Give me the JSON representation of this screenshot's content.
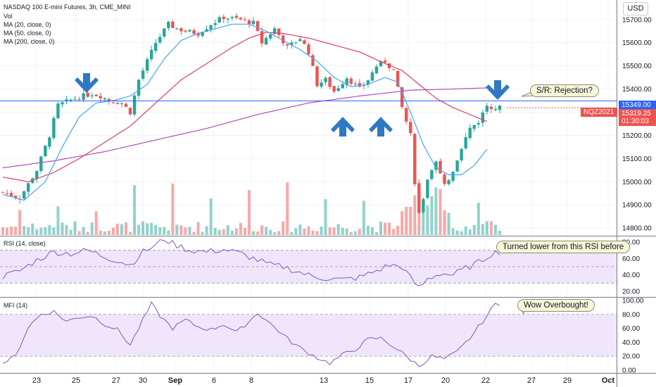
{
  "legend": {
    "title": "NASDAQ 100 E-mini Futures, 3h, CME_MINI",
    "vol": "Vol",
    "ma20": "MA (20, close, 0)",
    "ma50": "MA (50, close, 0)",
    "ma200": "MA (200, close, 0)"
  },
  "currency": "USD",
  "price_tags": {
    "level": "15349.00",
    "symbol": "NQZ2021",
    "last": "15319.25",
    "countdown": "01:30:03"
  },
  "callouts": {
    "sr": "S/R: Rejection?",
    "rsi": "Turned lower from this RSI before",
    "mfi": "Wow Overbought!"
  },
  "rsi_label": "RSI (14, close)",
  "mfi_label": "MFI (14)",
  "colors": {
    "up": "#26a69a",
    "down": "#ef5350",
    "ma20": "#42a5f5",
    "ma50": "#e03c6a",
    "ma200": "#b04cc2",
    "rsi": "#7e57c2",
    "mfi": "#7e57c2",
    "band": "#efe6fb",
    "level_line": "#2962ff",
    "arrow": "#2f78c4",
    "price_tag": "#2962ff",
    "last_tag": "#ef5350"
  },
  "chart_data": [
    {
      "type": "candlestick",
      "title": "NASDAQ 100 E-mini Futures, 3h, CME_MINI",
      "x_ticks": [
        "23",
        "25",
        "27",
        "30",
        "Sep",
        "6",
        "8",
        "13",
        "15",
        "17",
        "20",
        "22",
        "27",
        "29",
        "Oct"
      ],
      "y_ticks": [
        "15700.00",
        "15600.00",
        "15500.00",
        "15400.00",
        "15300.00",
        "15200.00",
        "15100.00",
        "15000.00",
        "14900.00",
        "14800.00"
      ],
      "ylim": [
        14800,
        15760
      ],
      "horizontal_level": 15349,
      "last_price": 15319.25,
      "close_path": [
        [
          0,
          14955
        ],
        [
          4,
          14930
        ],
        [
          8,
          15050
        ],
        [
          11,
          15200
        ],
        [
          13,
          15330
        ],
        [
          17,
          15360
        ],
        [
          21,
          15380
        ],
        [
          23,
          15370
        ],
        [
          25,
          15350
        ],
        [
          28,
          15340
        ],
        [
          30,
          15300
        ],
        [
          32,
          15440
        ],
        [
          34,
          15520
        ],
        [
          36,
          15600
        ],
        [
          39,
          15680
        ],
        [
          41,
          15660
        ],
        [
          43,
          15650
        ],
        [
          46,
          15640
        ],
        [
          49,
          15680
        ],
        [
          52,
          15710
        ],
        [
          56,
          15700
        ],
        [
          59,
          15685
        ],
        [
          61,
          15600
        ],
        [
          64,
          15660
        ],
        [
          67,
          15580
        ],
        [
          70,
          15620
        ],
        [
          72,
          15560
        ],
        [
          74,
          15420
        ],
        [
          76,
          15440
        ],
        [
          78,
          15390
        ],
        [
          81,
          15450
        ],
        [
          84,
          15400
        ],
        [
          86,
          15440
        ],
        [
          88,
          15500
        ],
        [
          90,
          15520
        ],
        [
          92,
          15480
        ],
        [
          94,
          15320
        ],
        [
          96,
          15200
        ],
        [
          97,
          15000
        ],
        [
          98,
          14860
        ],
        [
          100,
          15000
        ],
        [
          102,
          15080
        ],
        [
          104,
          14980
        ],
        [
          106,
          15050
        ],
        [
          108,
          15150
        ],
        [
          110,
          15230
        ],
        [
          112,
          15260
        ],
        [
          114,
          15330
        ],
        [
          116,
          15319
        ]
      ],
      "ma20_path": [
        [
          0,
          14945
        ],
        [
          5,
          14920
        ],
        [
          10,
          15000
        ],
        [
          14,
          15150
        ],
        [
          18,
          15280
        ],
        [
          22,
          15340
        ],
        [
          26,
          15350
        ],
        [
          30,
          15370
        ],
        [
          34,
          15420
        ],
        [
          38,
          15530
        ],
        [
          42,
          15610
        ],
        [
          46,
          15640
        ],
        [
          50,
          15660
        ],
        [
          54,
          15680
        ],
        [
          58,
          15680
        ],
        [
          62,
          15650
        ],
        [
          66,
          15610
        ],
        [
          70,
          15570
        ],
        [
          74,
          15520
        ],
        [
          78,
          15450
        ],
        [
          82,
          15410
        ],
        [
          86,
          15420
        ],
        [
          90,
          15450
        ],
        [
          93,
          15430
        ],
        [
          96,
          15300
        ],
        [
          99,
          15160
        ],
        [
          102,
          15060
        ],
        [
          105,
          15030
        ],
        [
          108,
          15030
        ],
        [
          111,
          15070
        ],
        [
          114,
          15140
        ]
      ],
      "ma50_path": [
        [
          0,
          15020
        ],
        [
          6,
          15000
        ],
        [
          12,
          15040
        ],
        [
          18,
          15100
        ],
        [
          24,
          15170
        ],
        [
          30,
          15240
        ],
        [
          36,
          15340
        ],
        [
          42,
          15440
        ],
        [
          48,
          15510
        ],
        [
          54,
          15580
        ],
        [
          58,
          15620
        ],
        [
          62,
          15645
        ],
        [
          66,
          15640
        ],
        [
          72,
          15620
        ],
        [
          78,
          15590
        ],
        [
          84,
          15560
        ],
        [
          90,
          15510
        ],
        [
          94,
          15480
        ],
        [
          98,
          15420
        ],
        [
          102,
          15360
        ],
        [
          106,
          15320
        ],
        [
          110,
          15290
        ],
        [
          114,
          15260
        ]
      ],
      "ma200_path": [
        [
          0,
          15060
        ],
        [
          12,
          15090
        ],
        [
          24,
          15130
        ],
        [
          36,
          15180
        ],
        [
          48,
          15230
        ],
        [
          60,
          15290
        ],
        [
          72,
          15340
        ],
        [
          84,
          15370
        ],
        [
          96,
          15395
        ],
        [
          106,
          15400
        ],
        [
          114,
          15405
        ]
      ]
    },
    {
      "type": "bar",
      "name": "Vol",
      "note": "volume shown as bars under price panel; colored by candle direction"
    },
    {
      "type": "line",
      "name": "RSI (14, close)",
      "y_ticks": [
        "80.00",
        "60.00",
        "40.00",
        "20.00"
      ],
      "ylim": [
        15,
        85
      ],
      "band": [
        30,
        70
      ],
      "values": [
        [
          0,
          38
        ],
        [
          4,
          45
        ],
        [
          8,
          58
        ],
        [
          12,
          68
        ],
        [
          16,
          66
        ],
        [
          20,
          70
        ],
        [
          24,
          62
        ],
        [
          28,
          56
        ],
        [
          30,
          52
        ],
        [
          33,
          68
        ],
        [
          36,
          76
        ],
        [
          38,
          84
        ],
        [
          40,
          78
        ],
        [
          44,
          70
        ],
        [
          48,
          68
        ],
        [
          52,
          71
        ],
        [
          56,
          66
        ],
        [
          60,
          58
        ],
        [
          63,
          52
        ],
        [
          66,
          50
        ],
        [
          70,
          43
        ],
        [
          73,
          38
        ],
        [
          76,
          36
        ],
        [
          80,
          34
        ],
        [
          84,
          37
        ],
        [
          88,
          45
        ],
        [
          91,
          52
        ],
        [
          94,
          50
        ],
        [
          96,
          36
        ],
        [
          98,
          24
        ],
        [
          100,
          35
        ],
        [
          103,
          42
        ],
        [
          106,
          40
        ],
        [
          109,
          48
        ],
        [
          112,
          55
        ],
        [
          115,
          66
        ],
        [
          117,
          68
        ]
      ]
    },
    {
      "type": "line",
      "name": "MFI (14)",
      "y_ticks": [
        "100.00",
        "80.00",
        "60.00",
        "40.00",
        "20.00",
        "0.00"
      ],
      "ylim": [
        0,
        100
      ],
      "band": [
        20,
        80
      ],
      "values": [
        [
          0,
          10
        ],
        [
          3,
          20
        ],
        [
          6,
          62
        ],
        [
          9,
          80
        ],
        [
          12,
          84
        ],
        [
          15,
          70
        ],
        [
          18,
          76
        ],
        [
          21,
          78
        ],
        [
          24,
          66
        ],
        [
          27,
          58
        ],
        [
          30,
          36
        ],
        [
          33,
          72
        ],
        [
          35,
          95
        ],
        [
          37,
          78
        ],
        [
          40,
          60
        ],
        [
          43,
          72
        ],
        [
          46,
          62
        ],
        [
          49,
          58
        ],
        [
          52,
          66
        ],
        [
          55,
          54
        ],
        [
          58,
          70
        ],
        [
          60,
          82
        ],
        [
          62,
          72
        ],
        [
          65,
          56
        ],
        [
          68,
          40
        ],
        [
          71,
          28
        ],
        [
          74,
          18
        ],
        [
          77,
          10
        ],
        [
          80,
          22
        ],
        [
          83,
          30
        ],
        [
          86,
          44
        ],
        [
          89,
          46
        ],
        [
          92,
          34
        ],
        [
          95,
          20
        ],
        [
          98,
          6
        ],
        [
          101,
          20
        ],
        [
          104,
          16
        ],
        [
          107,
          26
        ],
        [
          110,
          46
        ],
        [
          113,
          70
        ],
        [
          116,
          95
        ]
      ]
    }
  ]
}
